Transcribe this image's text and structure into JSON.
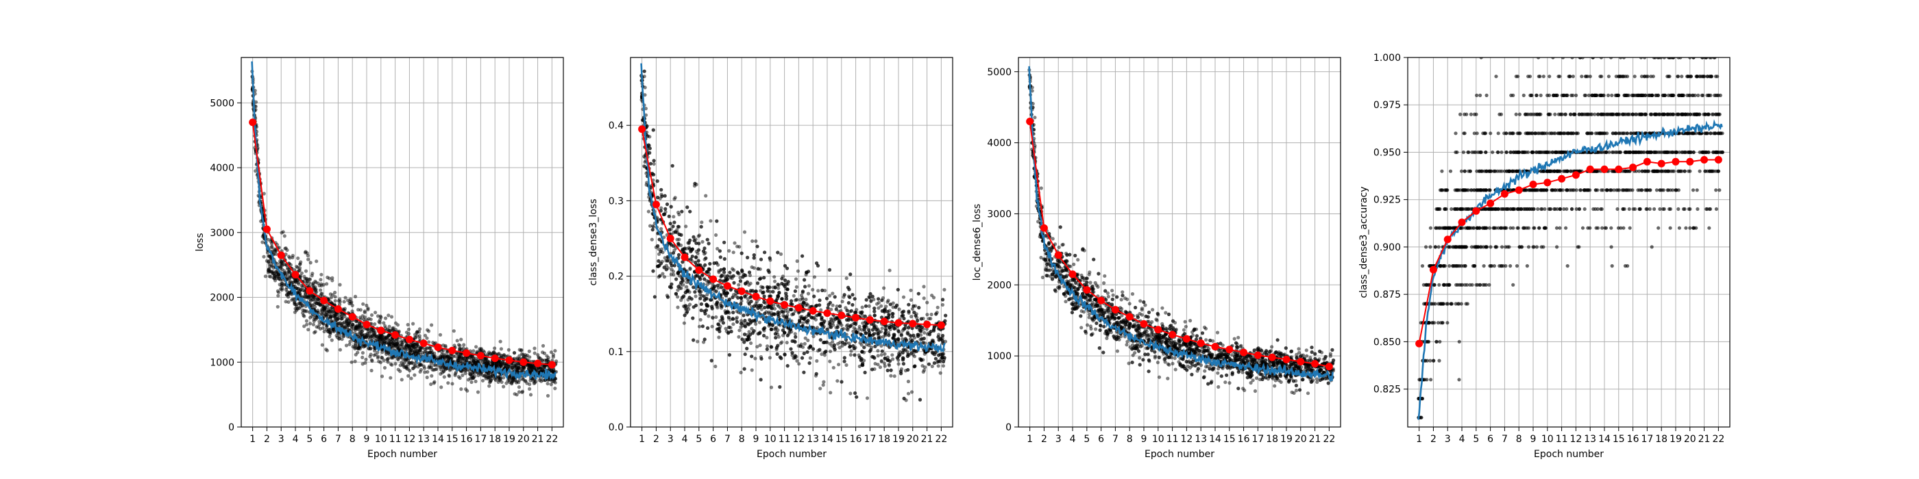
{
  "figure": {
    "x_label": "Epoch number"
  },
  "colors": {
    "scatter": "#000000",
    "running": "#1f77b4",
    "epoch_mean": "#ff0000",
    "grid": "#b0b0b0"
  },
  "chart_data": [
    {
      "type": "line",
      "ylabel": "loss",
      "xlabel": "Epoch number",
      "grid": true,
      "xlim": [
        0.2,
        22.8
      ],
      "ylim": [
        0,
        5700
      ],
      "x_ticks": [
        1,
        2,
        3,
        4,
        5,
        6,
        7,
        8,
        9,
        10,
        11,
        12,
        13,
        14,
        15,
        16,
        17,
        18,
        19,
        20,
        21,
        22
      ],
      "y_ticks": [
        0,
        1000,
        2000,
        3000,
        4000,
        5000
      ],
      "y_tick_labels": [
        "0",
        "1000",
        "2000",
        "3000",
        "4000",
        "5000"
      ],
      "series": [
        {
          "kind": "epoch_mean",
          "x": [
            1,
            2,
            3,
            4,
            5,
            6,
            7,
            8,
            9,
            10,
            11,
            12,
            13,
            14,
            15,
            16,
            17,
            18,
            19,
            20,
            21,
            22
          ],
          "values": [
            4700,
            3050,
            2650,
            2350,
            2100,
            1950,
            1820,
            1700,
            1580,
            1490,
            1420,
            1350,
            1290,
            1230,
            1180,
            1140,
            1100,
            1060,
            1030,
            1000,
            980,
            960
          ]
        },
        {
          "kind": "running",
          "x": [
            0.95,
            1.2,
            1.5,
            2,
            2.5,
            3,
            3.5,
            4,
            4.5,
            5,
            6,
            7,
            8,
            9,
            10,
            11,
            12,
            13,
            14,
            15,
            16,
            17,
            18,
            19,
            20,
            21,
            22
          ],
          "values": [
            5600,
            4500,
            3500,
            2800,
            2550,
            2350,
            2200,
            2050,
            1950,
            1850,
            1650,
            1520,
            1400,
            1300,
            1230,
            1160,
            1100,
            1050,
            1000,
            960,
            930,
            900,
            870,
            850,
            830,
            810,
            790
          ]
        },
        {
          "kind": "scatter_band",
          "x": [
            0.95,
            1.2,
            1.5,
            2,
            3,
            4,
            5,
            6,
            7,
            8,
            9,
            10,
            11,
            12,
            13,
            14,
            15,
            16,
            17,
            18,
            19,
            20,
            21,
            22
          ],
          "lower": [
            5200,
            3900,
            3000,
            2100,
            1700,
            1500,
            1300,
            1150,
            1000,
            900,
            820,
            760,
            700,
            660,
            620,
            590,
            560,
            540,
            520,
            500,
            490,
            480,
            470,
            460
          ],
          "upper": [
            5700,
            5200,
            4200,
            3400,
            3100,
            2900,
            2650,
            2500,
            2300,
            2150,
            2000,
            1900,
            1800,
            1700,
            1620,
            1560,
            1500,
            1450,
            1400,
            1360,
            1320,
            1300,
            1280,
            1260
          ]
        }
      ]
    },
    {
      "type": "line",
      "ylabel": "class_dense3_loss",
      "xlabel": "Epoch number",
      "grid": true,
      "xlim": [
        0.2,
        22.8
      ],
      "ylim": [
        0,
        0.49
      ],
      "x_ticks": [
        1,
        2,
        3,
        4,
        5,
        6,
        7,
        8,
        9,
        10,
        11,
        12,
        13,
        14,
        15,
        16,
        17,
        18,
        19,
        20,
        21,
        22
      ],
      "y_ticks": [
        0,
        0.1,
        0.2,
        0.3,
        0.4
      ],
      "y_tick_labels": [
        "0.0",
        "0.1",
        "0.2",
        "0.3",
        "0.4"
      ],
      "series": [
        {
          "kind": "epoch_mean",
          "x": [
            1,
            2,
            3,
            4,
            5,
            6,
            7,
            8,
            9,
            10,
            11,
            12,
            13,
            14,
            15,
            16,
            17,
            18,
            19,
            20,
            21,
            22
          ],
          "values": [
            0.395,
            0.295,
            0.25,
            0.225,
            0.208,
            0.196,
            0.187,
            0.18,
            0.173,
            0.167,
            0.162,
            0.158,
            0.154,
            0.151,
            0.148,
            0.145,
            0.142,
            0.14,
            0.138,
            0.137,
            0.136,
            0.135
          ]
        },
        {
          "kind": "running",
          "x": [
            0.95,
            1.2,
            1.5,
            2,
            2.5,
            3,
            3.5,
            4,
            5,
            6,
            7,
            8,
            9,
            10,
            11,
            12,
            13,
            14,
            15,
            16,
            17,
            18,
            19,
            20,
            21,
            22
          ],
          "values": [
            0.48,
            0.4,
            0.32,
            0.27,
            0.245,
            0.228,
            0.215,
            0.203,
            0.188,
            0.176,
            0.165,
            0.156,
            0.149,
            0.142,
            0.137,
            0.132,
            0.128,
            0.124,
            0.121,
            0.118,
            0.115,
            0.112,
            0.11,
            0.108,
            0.106,
            0.105
          ]
        },
        {
          "kind": "scatter_band",
          "x": [
            0.95,
            1.2,
            1.5,
            2,
            3,
            4,
            5,
            6,
            7,
            8,
            9,
            10,
            11,
            12,
            13,
            14,
            15,
            16,
            17,
            18,
            19,
            20,
            21,
            22
          ],
          "lower": [
            0.43,
            0.3,
            0.22,
            0.15,
            0.11,
            0.09,
            0.08,
            0.07,
            0.06,
            0.055,
            0.05,
            0.048,
            0.045,
            0.043,
            0.04,
            0.04,
            0.038,
            0.036,
            0.035,
            0.034,
            0.033,
            0.032,
            0.031,
            0.03
          ],
          "upper": [
            0.49,
            0.48,
            0.44,
            0.4,
            0.36,
            0.34,
            0.32,
            0.3,
            0.29,
            0.28,
            0.27,
            0.26,
            0.25,
            0.245,
            0.24,
            0.235,
            0.23,
            0.225,
            0.22,
            0.215,
            0.21,
            0.205,
            0.2,
            0.2
          ]
        }
      ]
    },
    {
      "type": "line",
      "ylabel": "loc_dense6_loss",
      "xlabel": "Epoch number",
      "grid": true,
      "xlim": [
        0.2,
        22.8
      ],
      "ylim": [
        0,
        5200
      ],
      "x_ticks": [
        1,
        2,
        3,
        4,
        5,
        6,
        7,
        8,
        9,
        10,
        11,
        12,
        13,
        14,
        15,
        16,
        17,
        18,
        19,
        20,
        21,
        22
      ],
      "y_ticks": [
        0,
        1000,
        2000,
        3000,
        4000,
        5000
      ],
      "y_tick_labels": [
        "0",
        "1000",
        "2000",
        "3000",
        "4000",
        "5000"
      ],
      "series": [
        {
          "kind": "epoch_mean",
          "x": [
            1,
            2,
            3,
            4,
            5,
            6,
            7,
            8,
            9,
            10,
            11,
            12,
            13,
            14,
            15,
            16,
            17,
            18,
            19,
            20,
            21,
            22
          ],
          "values": [
            4300,
            2800,
            2420,
            2150,
            1930,
            1780,
            1650,
            1550,
            1450,
            1370,
            1300,
            1240,
            1180,
            1130,
            1090,
            1050,
            1010,
            980,
            950,
            920,
            890,
            850
          ]
        },
        {
          "kind": "running",
          "x": [
            0.95,
            1.2,
            1.5,
            2,
            2.5,
            3,
            3.5,
            4,
            4.5,
            5,
            6,
            7,
            8,
            9,
            10,
            11,
            12,
            13,
            14,
            15,
            16,
            17,
            18,
            19,
            20,
            21,
            22
          ],
          "values": [
            5100,
            4100,
            3200,
            2600,
            2350,
            2150,
            2000,
            1880,
            1780,
            1700,
            1520,
            1390,
            1280,
            1190,
            1120,
            1060,
            1010,
            960,
            920,
            880,
            850,
            820,
            800,
            780,
            760,
            740,
            720
          ]
        },
        {
          "kind": "scatter_band",
          "x": [
            0.95,
            1.2,
            1.5,
            2,
            3,
            4,
            5,
            6,
            7,
            8,
            9,
            10,
            11,
            12,
            13,
            14,
            15,
            16,
            17,
            18,
            19,
            20,
            21,
            22
          ],
          "lower": [
            4800,
            3500,
            2700,
            1900,
            1550,
            1350,
            1150,
            1000,
            880,
            800,
            730,
            680,
            630,
            600,
            570,
            540,
            520,
            500,
            490,
            480,
            470,
            460,
            450,
            440
          ],
          "upper": [
            5200,
            4800,
            3900,
            3200,
            2900,
            2700,
            2450,
            2300,
            2150,
            2000,
            1880,
            1780,
            1680,
            1600,
            1520,
            1460,
            1400,
            1350,
            1300,
            1260,
            1230,
            1200,
            1180,
            1160
          ]
        }
      ]
    },
    {
      "type": "line",
      "ylabel": "class_dense3_accuracy",
      "xlabel": "Epoch number",
      "grid": true,
      "xlim": [
        0.2,
        22.8
      ],
      "ylim": [
        0.805,
        1.0
      ],
      "x_ticks": [
        1,
        2,
        3,
        4,
        5,
        6,
        7,
        8,
        9,
        10,
        11,
        12,
        13,
        14,
        15,
        16,
        17,
        18,
        19,
        20,
        21,
        22
      ],
      "y_ticks": [
        0.825,
        0.85,
        0.875,
        0.9,
        0.925,
        0.95,
        0.975,
        1.0
      ],
      "y_tick_labels": [
        "0.825",
        "0.850",
        "0.875",
        "0.900",
        "0.925",
        "0.950",
        "0.975",
        "1.000"
      ],
      "series": [
        {
          "kind": "epoch_mean",
          "x": [
            1,
            2,
            3,
            4,
            5,
            6,
            7,
            8,
            9,
            10,
            11,
            12,
            13,
            14,
            15,
            16,
            17,
            18,
            19,
            20,
            21,
            22
          ],
          "values": [
            0.849,
            0.888,
            0.904,
            0.913,
            0.919,
            0.923,
            0.928,
            0.93,
            0.933,
            0.934,
            0.936,
            0.938,
            0.941,
            0.941,
            0.941,
            0.942,
            0.945,
            0.944,
            0.945,
            0.945,
            0.946,
            0.946
          ]
        },
        {
          "kind": "running",
          "x": [
            0.95,
            1.2,
            1.5,
            2,
            2.5,
            3,
            3.5,
            4,
            5,
            6,
            7,
            8,
            9,
            10,
            11,
            12,
            13,
            14,
            15,
            16,
            17,
            18,
            19,
            20,
            21,
            22
          ],
          "values": [
            0.81,
            0.83,
            0.86,
            0.885,
            0.895,
            0.903,
            0.908,
            0.912,
            0.92,
            0.927,
            0.932,
            0.937,
            0.94,
            0.944,
            0.947,
            0.95,
            0.952,
            0.953,
            0.955,
            0.957,
            0.958,
            0.96,
            0.961,
            0.962,
            0.963,
            0.964
          ]
        },
        {
          "kind": "scatter_grid",
          "levels": [
            0.81,
            0.82,
            0.83,
            0.84,
            0.85,
            0.86,
            0.87,
            0.88,
            0.89,
            0.9,
            0.91,
            0.92,
            0.93,
            0.94,
            0.95,
            0.96,
            0.97,
            0.98,
            0.99,
            1.0
          ]
        }
      ]
    }
  ]
}
